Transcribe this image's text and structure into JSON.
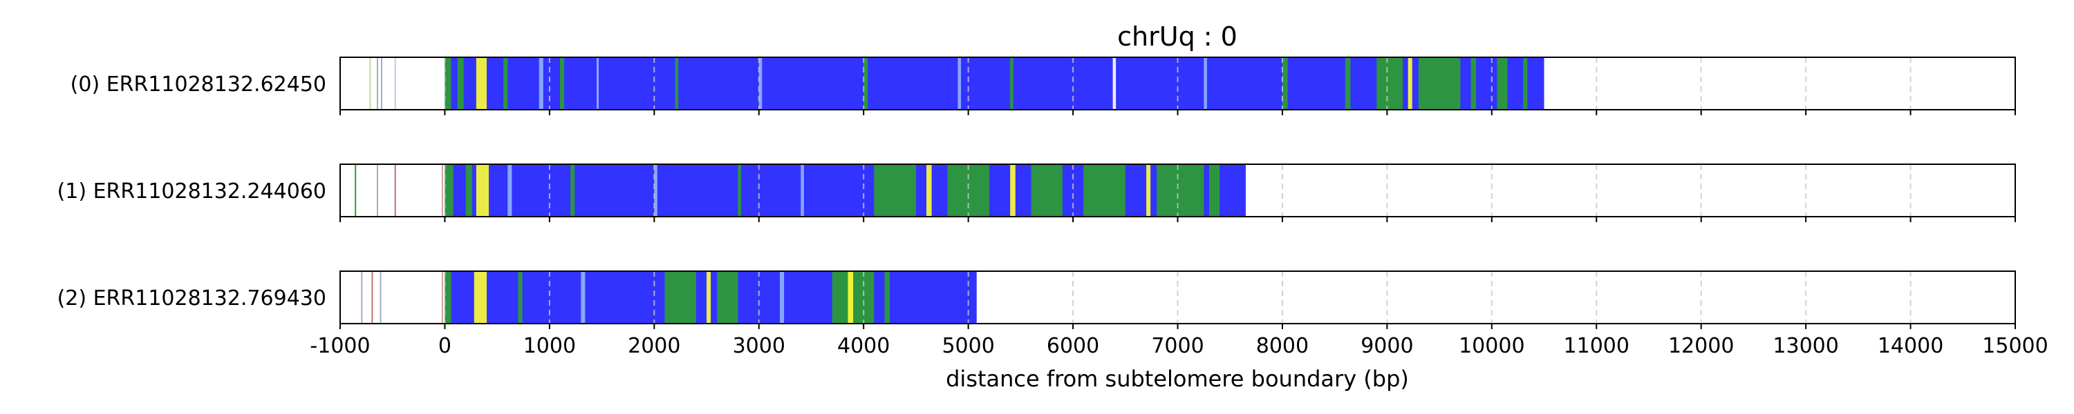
{
  "chart_data": {
    "type": "bar",
    "title": "chrUq : 0",
    "xlabel": "distance from subtelomere boundary (bp)",
    "ylabel": "",
    "xlim": [
      -1000,
      15000
    ],
    "x_ticks": [
      "-1000",
      "0",
      "1000",
      "2000",
      "3000",
      "4000",
      "5000",
      "6000",
      "7000",
      "8000",
      "9000",
      "10000",
      "11000",
      "12000",
      "13000",
      "14000",
      "15000"
    ],
    "grid": "vertical dashed gridlines",
    "colors": {
      "tract": "#3333ff",
      "accent_green": "#2ca02c",
      "accent_yellow": "#ffff33",
      "accent_light_blue": "#8fb4ff",
      "grid": "#c8c8c8"
    },
    "reads": [
      {
        "label": "(0) ERR11028132.62450",
        "tract_start": 0,
        "tract_end": 10500,
        "pre_marks": [
          {
            "x": -720,
            "color": "#c8d89a"
          },
          {
            "x": -650,
            "color": "#9fb0c8"
          },
          {
            "x": -610,
            "color": "#9fb0c8"
          },
          {
            "x": -480,
            "color": "#c8c8e8"
          }
        ],
        "segments": [
          {
            "x0": 0,
            "x1": 60,
            "color": "#2ca02c"
          },
          {
            "x0": 120,
            "x1": 180,
            "color": "#2ca02c"
          },
          {
            "x0": 300,
            "x1": 400,
            "color": "#ffff33"
          },
          {
            "x0": 560,
            "x1": 600,
            "color": "#2ca02c"
          },
          {
            "x0": 900,
            "x1": 940,
            "color": "#8fb4ff"
          },
          {
            "x0": 1100,
            "x1": 1140,
            "color": "#2ca02c"
          },
          {
            "x0": 1450,
            "x1": 1470,
            "color": "#8fb4ff"
          },
          {
            "x0": 2200,
            "x1": 2230,
            "color": "#2ca02c"
          },
          {
            "x0": 3000,
            "x1": 3030,
            "color": "#8fb4ff"
          },
          {
            "x0": 4000,
            "x1": 4040,
            "color": "#2ca02c"
          },
          {
            "x0": 4900,
            "x1": 4930,
            "color": "#8fb4ff"
          },
          {
            "x0": 5400,
            "x1": 5430,
            "color": "#2ca02c"
          },
          {
            "x0": 6380,
            "x1": 6410,
            "color": "#ffffff"
          },
          {
            "x0": 7250,
            "x1": 7280,
            "color": "#8fb4ff"
          },
          {
            "x0": 8000,
            "x1": 8050,
            "color": "#2ca02c"
          },
          {
            "x0": 8600,
            "x1": 8650,
            "color": "#2ca02c"
          },
          {
            "x0": 8900,
            "x1": 9150,
            "color": "#2ca02c"
          },
          {
            "x0": 9200,
            "x1": 9240,
            "color": "#ffff33"
          },
          {
            "x0": 9300,
            "x1": 9700,
            "color": "#2ca02c"
          },
          {
            "x0": 9800,
            "x1": 9850,
            "color": "#2ca02c"
          },
          {
            "x0": 10050,
            "x1": 10150,
            "color": "#2ca02c"
          },
          {
            "x0": 10300,
            "x1": 10340,
            "color": "#2ca02c"
          }
        ]
      },
      {
        "label": "(1) ERR11028132.244060",
        "tract_start": 0,
        "tract_end": 7650,
        "pre_marks": [
          {
            "x": -860,
            "color": "#2ca02c"
          },
          {
            "x": -650,
            "color": "#9fb0c8"
          },
          {
            "x": -480,
            "color": "#c07070"
          },
          {
            "x": -30,
            "color": "#d0a0a0"
          }
        ],
        "segments": [
          {
            "x0": 0,
            "x1": 80,
            "color": "#2ca02c"
          },
          {
            "x0": 200,
            "x1": 260,
            "color": "#2ca02c"
          },
          {
            "x0": 300,
            "x1": 420,
            "color": "#ffff33"
          },
          {
            "x0": 600,
            "x1": 640,
            "color": "#8fb4ff"
          },
          {
            "x0": 1200,
            "x1": 1240,
            "color": "#2ca02c"
          },
          {
            "x0": 2000,
            "x1": 2030,
            "color": "#8fb4ff"
          },
          {
            "x0": 2800,
            "x1": 2830,
            "color": "#2ca02c"
          },
          {
            "x0": 3400,
            "x1": 3430,
            "color": "#8fb4ff"
          },
          {
            "x0": 4100,
            "x1": 4500,
            "color": "#2ca02c"
          },
          {
            "x0": 4600,
            "x1": 4650,
            "color": "#ffff33"
          },
          {
            "x0": 4800,
            "x1": 5200,
            "color": "#2ca02c"
          },
          {
            "x0": 5400,
            "x1": 5450,
            "color": "#ffff33"
          },
          {
            "x0": 5600,
            "x1": 5900,
            "color": "#2ca02c"
          },
          {
            "x0": 6100,
            "x1": 6500,
            "color": "#2ca02c"
          },
          {
            "x0": 6700,
            "x1": 6740,
            "color": "#ffff33"
          },
          {
            "x0": 6800,
            "x1": 7250,
            "color": "#2ca02c"
          },
          {
            "x0": 7300,
            "x1": 7400,
            "color": "#2ca02c"
          }
        ]
      },
      {
        "label": "(2) ERR11028132.769430",
        "tract_start": 0,
        "tract_end": 5080,
        "pre_marks": [
          {
            "x": -800,
            "color": "#9fb0c8"
          },
          {
            "x": -700,
            "color": "#c07070"
          },
          {
            "x": -620,
            "color": "#9fb0c8"
          },
          {
            "x": -30,
            "color": "#d0a0a0"
          }
        ],
        "segments": [
          {
            "x0": 0,
            "x1": 60,
            "color": "#2ca02c"
          },
          {
            "x0": 280,
            "x1": 400,
            "color": "#ffff33"
          },
          {
            "x0": 700,
            "x1": 740,
            "color": "#2ca02c"
          },
          {
            "x0": 1300,
            "x1": 1340,
            "color": "#8fb4ff"
          },
          {
            "x0": 2100,
            "x1": 2400,
            "color": "#2ca02c"
          },
          {
            "x0": 2500,
            "x1": 2540,
            "color": "#ffff33"
          },
          {
            "x0": 2600,
            "x1": 2800,
            "color": "#2ca02c"
          },
          {
            "x0": 3200,
            "x1": 3240,
            "color": "#8fb4ff"
          },
          {
            "x0": 3700,
            "x1": 4100,
            "color": "#2ca02c"
          },
          {
            "x0": 3850,
            "x1": 3900,
            "color": "#ffff33"
          },
          {
            "x0": 4200,
            "x1": 4250,
            "color": "#2ca02c"
          }
        ]
      }
    ]
  }
}
